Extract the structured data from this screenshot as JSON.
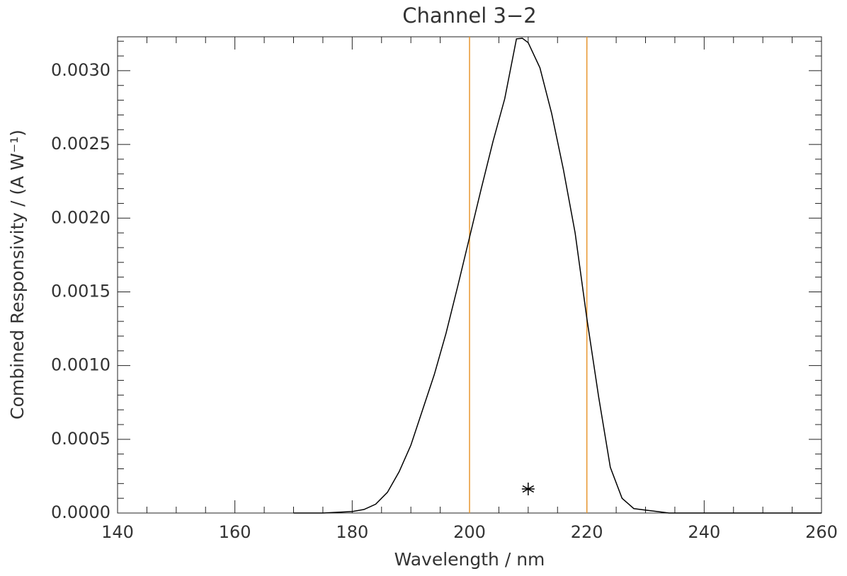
{
  "chart_data": {
    "type": "line",
    "title": "Channel 3−2",
    "x_label": "Wavelength / nm",
    "y_label": "Combined Responsivity / (A W⁻¹)",
    "x": [
      170,
      175,
      180,
      182,
      184,
      186,
      188,
      190,
      192,
      194,
      196,
      198,
      200,
      202,
      204,
      206,
      208,
      209,
      210,
      212,
      214,
      216,
      218,
      220,
      222,
      224,
      226,
      228,
      230,
      232,
      234,
      240,
      250,
      260
    ],
    "series": [
      {
        "color": "#000000",
        "values": [
          0,
          0,
          1e-05,
          2.4e-05,
          6e-05,
          0.00014,
          0.00028,
          0.00046,
          0.0007,
          0.00094,
          0.00122,
          0.00154,
          0.00187,
          0.0022,
          0.00252,
          0.00281,
          0.003216,
          0.00322,
          0.00319,
          0.00302,
          0.00271,
          0.00233,
          0.0019,
          0.00132,
          0.00079,
          0.00031,
          0.0001,
          3e-05,
          2e-05,
          1e-05,
          0,
          0,
          0,
          0
        ]
      }
    ],
    "vlines": [
      {
        "x": 200,
        "color": "#e8962e"
      },
      {
        "x": 220,
        "color": "#e8962e"
      }
    ],
    "markers": [
      {
        "x": 210,
        "y": 0.000163,
        "color": "#000000"
      }
    ],
    "xlim": [
      140,
      260
    ],
    "xticks": [
      140,
      160,
      180,
      200,
      220,
      240,
      260
    ],
    "ylim": [
      0,
      0.00323
    ],
    "yticks": [
      {
        "value": 0,
        "label": "0.0000"
      },
      {
        "value": 0.0005,
        "label": "0.0005"
      },
      {
        "value": 0.001,
        "label": "0.0010"
      },
      {
        "value": 0.0015,
        "label": "0.0015"
      },
      {
        "value": 0.002,
        "label": "0.0020"
      },
      {
        "value": 0.0025,
        "label": "0.0025"
      },
      {
        "value": 0.003,
        "label": "0.0030"
      }
    ],
    "grid": false
  }
}
